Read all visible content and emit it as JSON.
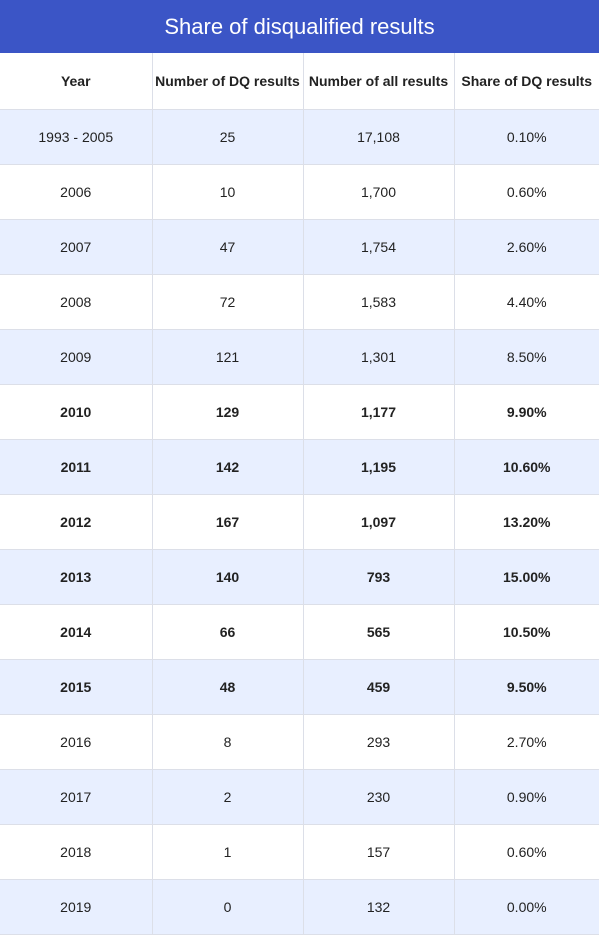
{
  "chart_data": {
    "type": "table",
    "title": "Share of disqualified results",
    "columns": [
      "Year",
      "Number of DQ results",
      "Number of all results",
      "Share of DQ results"
    ],
    "rows": [
      {
        "year": "1993 - 2005",
        "dq": "25",
        "all": "17,108",
        "share": "0.10%",
        "bold": false
      },
      {
        "year": "2006",
        "dq": "10",
        "all": "1,700",
        "share": "0.60%",
        "bold": false
      },
      {
        "year": "2007",
        "dq": "47",
        "all": "1,754",
        "share": "2.60%",
        "bold": false
      },
      {
        "year": "2008",
        "dq": "72",
        "all": "1,583",
        "share": "4.40%",
        "bold": false
      },
      {
        "year": "2009",
        "dq": "121",
        "all": "1,301",
        "share": "8.50%",
        "bold": false
      },
      {
        "year": "2010",
        "dq": "129",
        "all": "1,177",
        "share": "9.90%",
        "bold": true
      },
      {
        "year": "2011",
        "dq": "142",
        "all": "1,195",
        "share": "10.60%",
        "bold": true
      },
      {
        "year": "2012",
        "dq": "167",
        "all": "1,097",
        "share": "13.20%",
        "bold": true
      },
      {
        "year": "2013",
        "dq": "140",
        "all": "793",
        "share": "15.00%",
        "bold": true
      },
      {
        "year": "2014",
        "dq": "66",
        "all": "565",
        "share": "10.50%",
        "bold": true
      },
      {
        "year": "2015",
        "dq": "48",
        "all": "459",
        "share": "9.50%",
        "bold": true
      },
      {
        "year": "2016",
        "dq": "8",
        "all": "293",
        "share": "2.70%",
        "bold": false
      },
      {
        "year": "2017",
        "dq": "2",
        "all": "230",
        "share": "0.90%",
        "bold": false
      },
      {
        "year": "2018",
        "dq": "1",
        "all": "157",
        "share": "0.60%",
        "bold": false
      },
      {
        "year": "2019",
        "dq": "0",
        "all": "132",
        "share": "0.00%",
        "bold": false
      }
    ]
  },
  "colors": {
    "header_bar": "#3b55c6",
    "row_tint": "#e8efff"
  }
}
